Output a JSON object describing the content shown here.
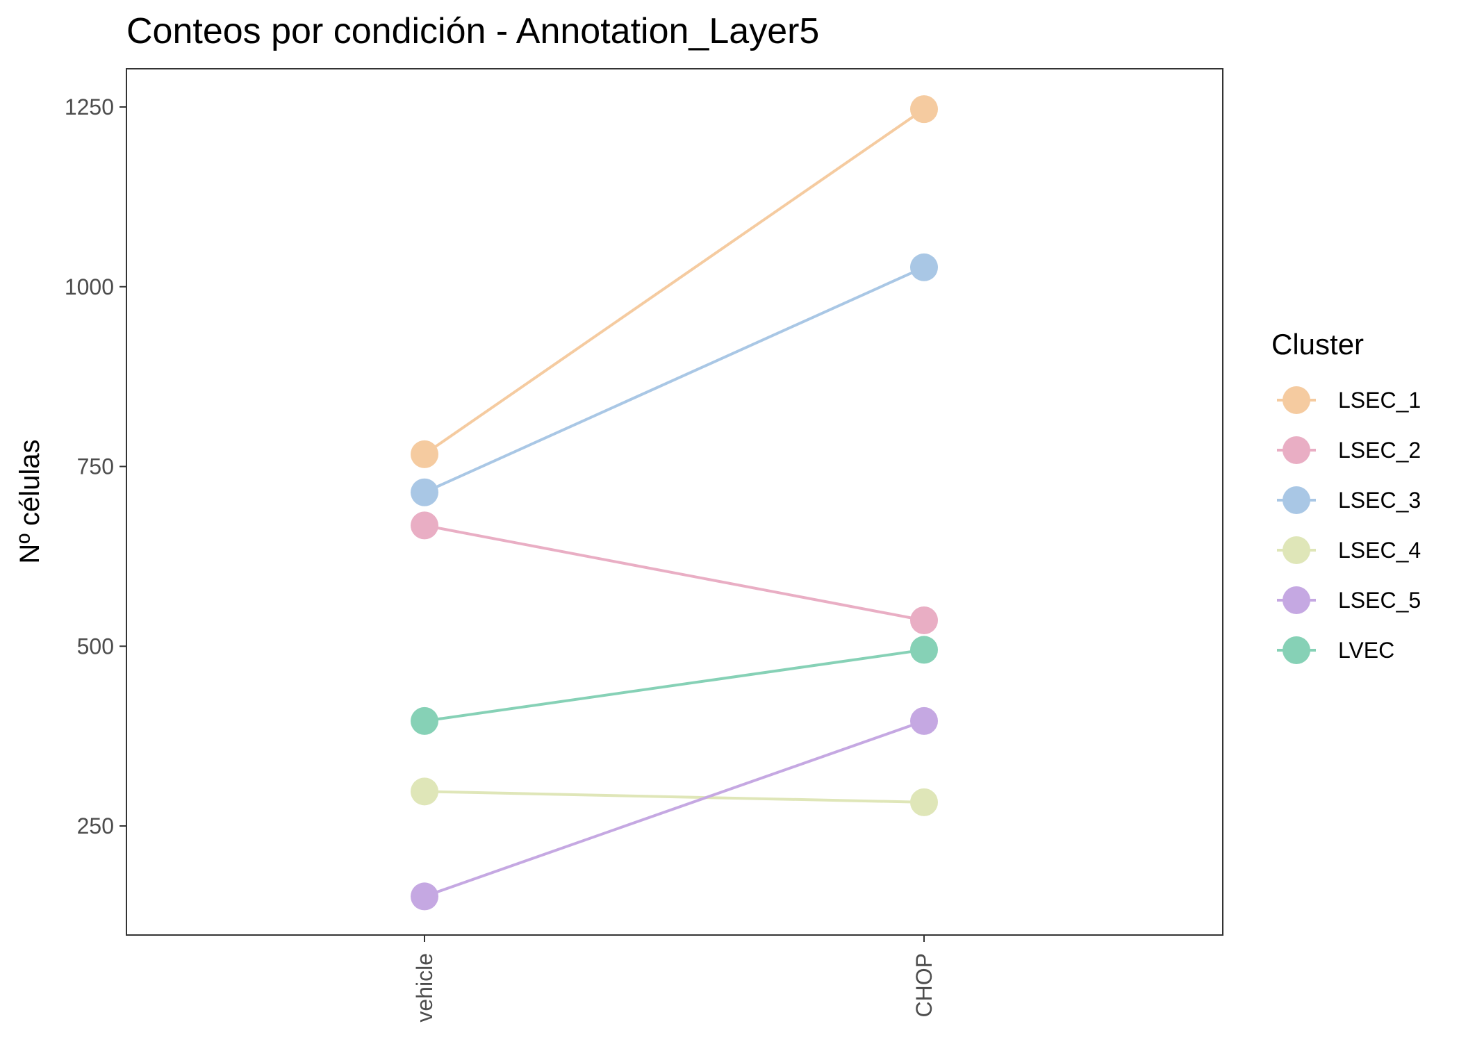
{
  "chart_data": {
    "type": "line",
    "title": "Conteos por condición - Annotation_Layer5",
    "xlabel": "",
    "ylabel": "Nº células",
    "categories": [
      "vehicle",
      "CHOP"
    ],
    "ylim": [
      100,
      1300
    ],
    "yticks": [
      250,
      500,
      750,
      1000,
      1250
    ],
    "grid": false,
    "legend": {
      "title": "Cluster",
      "position": "right"
    },
    "series": [
      {
        "name": "LSEC_1",
        "color": "#F5CBA0",
        "values": [
          767,
          1247
        ]
      },
      {
        "name": "LSEC_2",
        "color": "#E9AEC4",
        "values": [
          668,
          536
        ]
      },
      {
        "name": "LSEC_3",
        "color": "#A9C7E5",
        "values": [
          714,
          1027
        ]
      },
      {
        "name": "LSEC_4",
        "color": "#DFE6B8",
        "values": [
          298,
          283
        ]
      },
      {
        "name": "LSEC_5",
        "color": "#C5A8E2",
        "values": [
          152,
          396
        ]
      },
      {
        "name": "LVEC",
        "color": "#86D1B6",
        "values": [
          396,
          495
        ]
      }
    ]
  }
}
